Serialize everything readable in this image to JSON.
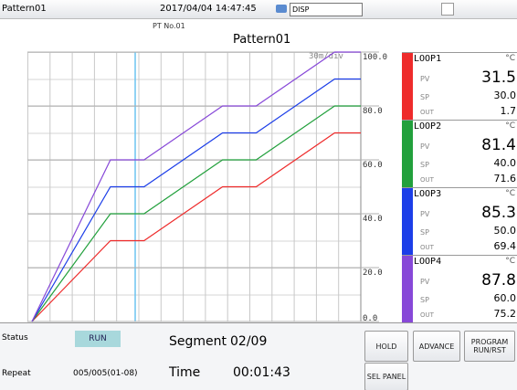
{
  "header": {
    "pattern": "Pattern01",
    "datetime": "2017/04/04 14:47:45",
    "mode": "DISP",
    "pt_no": "PT No.01",
    "pattern_name": "Pattern01"
  },
  "chart_data": {
    "type": "line",
    "div_label": "30m/div",
    "x": [
      0,
      105,
      150,
      255,
      300,
      405,
      440
    ],
    "xlim": [
      0,
      440
    ],
    "ylim": [
      0,
      100
    ],
    "yticks": [
      {
        "value": 0,
        "label": "0.0"
      },
      {
        "value": 20,
        "label": "20.0"
      },
      {
        "value": 40,
        "label": "40.0"
      },
      {
        "value": 60,
        "label": "60.0"
      },
      {
        "value": 80,
        "label": "80.0"
      },
      {
        "value": 100,
        "label": "100.0"
      }
    ],
    "series": [
      {
        "color": "#ee2b2b",
        "values": [
          0,
          30,
          30,
          50,
          50,
          70,
          70
        ]
      },
      {
        "color": "#22a03c",
        "values": [
          0,
          40,
          40,
          60,
          60,
          80,
          80
        ]
      },
      {
        "color": "#1c3ee8",
        "values": [
          0,
          50,
          50,
          70,
          70,
          90,
          90
        ]
      },
      {
        "color": "#8748d8",
        "values": [
          0,
          60,
          60,
          80,
          80,
          100,
          100
        ]
      }
    ]
  },
  "loops": [
    {
      "name": "LOOP1",
      "unit": "°C",
      "pv_label": "PV",
      "pv": "31.5",
      "sp_label": "SP",
      "sp": "30.0",
      "out_label": "OUT",
      "out": "1.7"
    },
    {
      "name": "LOOP2",
      "unit": "°C",
      "pv_label": "PV",
      "pv": "81.4",
      "sp_label": "SP",
      "sp": "40.0",
      "out_label": "OUT",
      "out": "71.6"
    },
    {
      "name": "LOOP3",
      "unit": "°C",
      "pv_label": "PV",
      "pv": "85.3",
      "sp_label": "SP",
      "sp": "50.0",
      "out_label": "OUT",
      "out": "69.4"
    },
    {
      "name": "LOOP4",
      "unit": "°C",
      "pv_label": "PV",
      "pv": "87.8",
      "sp_label": "SP",
      "sp": "60.0",
      "out_label": "OUT",
      "out": "75.2"
    }
  ],
  "footer": {
    "status_label": "Status",
    "status": "RUN",
    "segment_label": "Segment",
    "segment": "02/09",
    "repeat_label": "Repeat",
    "repeat": "005/005(01-08)",
    "time_label": "Time",
    "time": "00:01:43",
    "buttons": [
      "HOLD",
      "ADVANCE",
      "PROGRAM RUN/RST",
      "SEL PANEL"
    ]
  }
}
